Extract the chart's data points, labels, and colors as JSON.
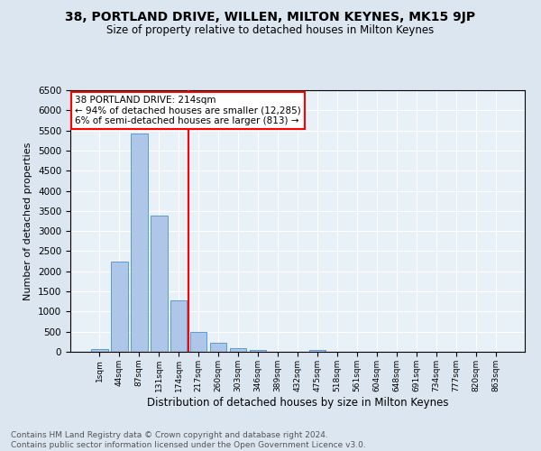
{
  "title": "38, PORTLAND DRIVE, WILLEN, MILTON KEYNES, MK15 9JP",
  "subtitle": "Size of property relative to detached houses in Milton Keynes",
  "xlabel": "Distribution of detached houses by size in Milton Keynes",
  "ylabel": "Number of detached properties",
  "footer_line1": "Contains HM Land Registry data © Crown copyright and database right 2024.",
  "footer_line2": "Contains public sector information licensed under the Open Government Licence v3.0.",
  "bar_labels": [
    "1sqm",
    "44sqm",
    "87sqm",
    "131sqm",
    "174sqm",
    "217sqm",
    "260sqm",
    "303sqm",
    "346sqm",
    "389sqm",
    "432sqm",
    "475sqm",
    "518sqm",
    "561sqm",
    "604sqm",
    "648sqm",
    "691sqm",
    "734sqm",
    "777sqm",
    "820sqm",
    "863sqm"
  ],
  "bar_values": [
    75,
    2250,
    5430,
    3380,
    1280,
    490,
    215,
    100,
    55,
    0,
    0,
    55,
    0,
    0,
    0,
    0,
    0,
    0,
    0,
    0,
    0
  ],
  "bar_color": "#aec6e8",
  "bar_edgecolor": "#5b9bd5",
  "vline_x": 4.5,
  "vline_color": "red",
  "annotation_title": "38 PORTLAND DRIVE: 214sqm",
  "annotation_line1": "← 94% of detached houses are smaller (12,285)",
  "annotation_line2": "6% of semi-detached houses are larger (813) →",
  "annotation_box_color": "red",
  "ylim": [
    0,
    6500
  ],
  "yticks": [
    0,
    500,
    1000,
    1500,
    2000,
    2500,
    3000,
    3500,
    4000,
    4500,
    5000,
    5500,
    6000,
    6500
  ],
  "bg_color": "#dce6f0",
  "plot_bg_color": "#e8f0f8",
  "title_fontsize": 10,
  "subtitle_fontsize": 8.5,
  "ylabel_fontsize": 8,
  "xlabel_fontsize": 8.5,
  "footer_fontsize": 6.5,
  "footer_color": "#555555"
}
